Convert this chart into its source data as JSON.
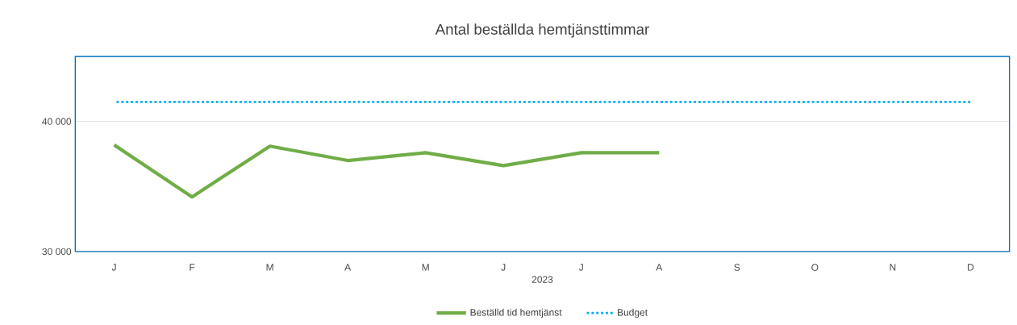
{
  "chart_data": {
    "type": "line",
    "title": "Antal beställda hemtjänsttimmar",
    "xlabel": "2023",
    "categories": [
      "J",
      "F",
      "M",
      "A",
      "M",
      "J",
      "J",
      "A",
      "S",
      "O",
      "N",
      "D"
    ],
    "series": [
      {
        "name": "Beställd tid hemtjänst",
        "color": "#70ad47",
        "line_style": "solid",
        "values": [
          38200,
          34200,
          38100,
          37000,
          37600,
          36600,
          37600,
          37600,
          null,
          null,
          null,
          null
        ]
      },
      {
        "name": "Budget",
        "color": "#00b0f0",
        "line_style": "dotted",
        "values": [
          41500,
          41500,
          41500,
          41500,
          41500,
          41500,
          41500,
          41500,
          41500,
          41500,
          41500,
          41500
        ]
      }
    ],
    "ylim": [
      30000,
      45000
    ],
    "yticks": [
      {
        "value": 30000,
        "label": "30 000"
      },
      {
        "value": 40000,
        "label": "40 000"
      }
    ],
    "grid": "y",
    "legend": "bottom",
    "marker": "none"
  }
}
